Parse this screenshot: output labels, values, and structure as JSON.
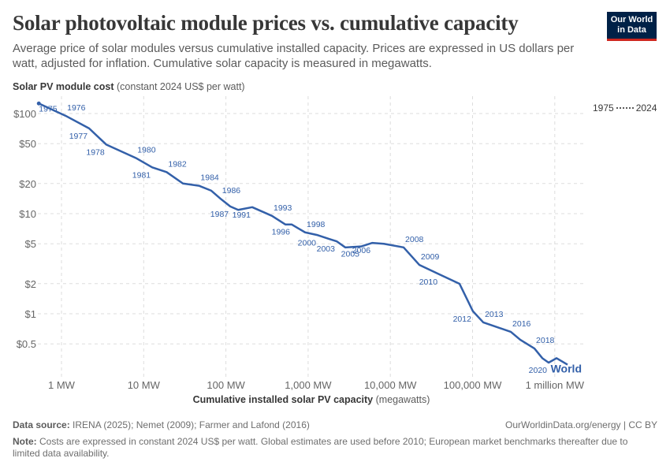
{
  "header": {
    "title": "Solar photovoltaic module prices vs. cumulative capacity",
    "subtitle": "Average price of solar modules versus cumulative installed capacity. Prices are expressed in US dollars per watt, adjusted for inflation. Cumulative solar capacity is measured in megawatts.",
    "logo_line1": "Our World",
    "logo_line2": "in Data"
  },
  "legend": {
    "start": "1975",
    "end": "2024"
  },
  "footer": {
    "source_label": "Data source:",
    "source": "IRENA (2025); Nemet (2009); Farmer and Lafond (2016)",
    "url": "OurWorldinData.org/energy | CC BY",
    "note_label": "Note:",
    "note": "Costs are expressed in constant 2024 US$ per watt. Global estimates are used before 2010; European market benchmarks thereafter due to limited data availability."
  },
  "chart_data": {
    "type": "line",
    "ylabel_bold": "Solar PV module cost",
    "ylabel_unit": "(constant 2024 US$ per watt)",
    "xlabel_bold": "Cumulative installed solar PV capacity",
    "xlabel_unit": "(megawatts)",
    "x_scale": "log",
    "y_scale": "log",
    "xlim": [
      0.45,
      1600000
    ],
    "ylim": [
      0.28,
      140
    ],
    "grid": true,
    "legend_placement": "top-right",
    "x_ticks": [
      {
        "v": 1,
        "label": "1 MW"
      },
      {
        "v": 10,
        "label": "10 MW"
      },
      {
        "v": 100,
        "label": "100 MW"
      },
      {
        "v": 1000,
        "label": "1,000 MW"
      },
      {
        "v": 10000,
        "label": "10,000 MW"
      },
      {
        "v": 100000,
        "label": "100,000 MW"
      },
      {
        "v": 1000000,
        "label": "1 million MW"
      }
    ],
    "y_ticks": [
      {
        "v": 100,
        "label": "$100"
      },
      {
        "v": 50,
        "label": "$50"
      },
      {
        "v": 20,
        "label": "$20"
      },
      {
        "v": 10,
        "label": "$10"
      },
      {
        "v": 5,
        "label": "$5"
      },
      {
        "v": 2,
        "label": "$2"
      },
      {
        "v": 1,
        "label": "$1"
      },
      {
        "v": 0.5,
        "label": "$0.5"
      }
    ],
    "series": [
      {
        "name": "World",
        "color": "#3360a9",
        "points": [
          {
            "year": "1975",
            "x": 0.53,
            "y": 126,
            "label": "below"
          },
          {
            "year": "1976",
            "x": 1.12,
            "y": 95,
            "label": "above"
          },
          {
            "year": "1977",
            "x": 2.17,
            "y": 71,
            "label": "below"
          },
          {
            "year": "1978",
            "x": 3.5,
            "y": 49,
            "label": "below"
          },
          {
            "year": "1980",
            "x": 8.0,
            "y": 36,
            "label": "above"
          },
          {
            "year": "1981",
            "x": 12.7,
            "y": 29,
            "label": "below"
          },
          {
            "year": "1982",
            "x": 19,
            "y": 26,
            "label": "above"
          },
          {
            "year": "1983",
            "x": 30,
            "y": 20
          },
          {
            "year": "1984",
            "x": 47,
            "y": 19,
            "label": "above"
          },
          {
            "year": "1985",
            "x": 66,
            "y": 17
          },
          {
            "year": "1986",
            "x": 86,
            "y": 14.1,
            "label": "above"
          },
          {
            "year": "1987",
            "x": 113,
            "y": 11.8,
            "label": "below"
          },
          {
            "year": "1988",
            "x": 141,
            "y": 10.9
          },
          {
            "year": "1991",
            "x": 209,
            "y": 11.6,
            "label": "below"
          },
          {
            "year": "1993",
            "x": 363,
            "y": 9.5,
            "label": "above"
          },
          {
            "year": "1995",
            "x": 528,
            "y": 7.8
          },
          {
            "year": "1996",
            "x": 630,
            "y": 7.8,
            "label": "below"
          },
          {
            "year": "1998",
            "x": 918,
            "y": 6.5,
            "label": "above"
          },
          {
            "year": "2000",
            "x": 1307,
            "y": 6.1,
            "label": "below"
          },
          {
            "year": "2002",
            "x": 1780,
            "y": 5.6
          },
          {
            "year": "2003",
            "x": 2218,
            "y": 5.3,
            "label": "below"
          },
          {
            "year": "2004",
            "x": 2830,
            "y": 4.6
          },
          {
            "year": "2005",
            "x": 4400,
            "y": 4.7,
            "label": "below"
          },
          {
            "year": "2006",
            "x": 6000,
            "y": 5.1,
            "label": "below"
          },
          {
            "year": "2007",
            "x": 8340,
            "y": 5.0
          },
          {
            "year": "2008",
            "x": 14500,
            "y": 4.6,
            "label": "above"
          },
          {
            "year": "2009",
            "x": 22500,
            "y": 3.08,
            "label": "above"
          },
          {
            "year": "2010",
            "x": 39200,
            "y": 2.48,
            "label": "below"
          },
          {
            "year": "2011",
            "x": 69500,
            "y": 1.99
          },
          {
            "year": "2012",
            "x": 101000,
            "y": 1.06,
            "label": "below"
          },
          {
            "year": "2013",
            "x": 135000,
            "y": 0.82,
            "label": "above"
          },
          {
            "year": "2016",
            "x": 292000,
            "y": 0.66,
            "label": "above"
          },
          {
            "year": "2017",
            "x": 380000,
            "y": 0.55
          },
          {
            "year": "2018",
            "x": 566000,
            "y": 0.45,
            "label": "above"
          },
          {
            "year": "2019",
            "x": 706000,
            "y": 0.36
          },
          {
            "year": "2020",
            "x": 842000,
            "y": 0.325,
            "label": "below"
          },
          {
            "year": "2022",
            "x": 1050000,
            "y": 0.36
          },
          {
            "year": "2024",
            "x": 1430000,
            "y": 0.31
          }
        ]
      }
    ]
  }
}
